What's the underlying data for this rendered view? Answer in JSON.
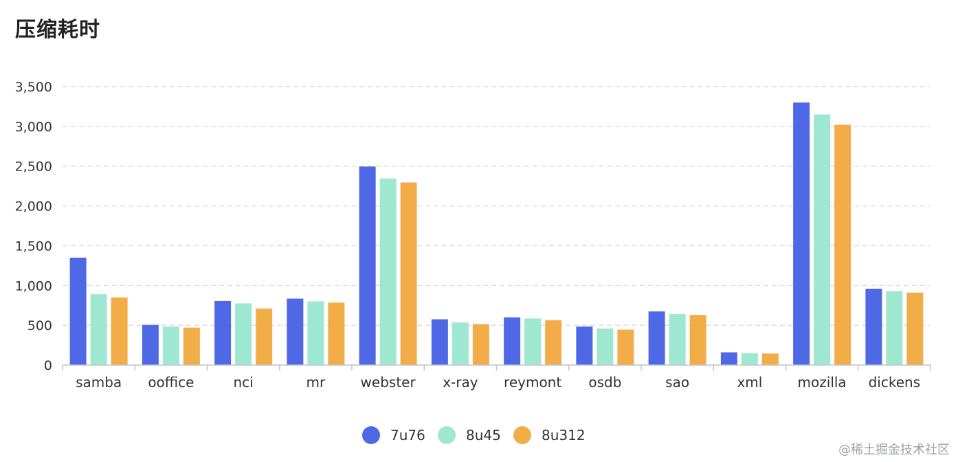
{
  "title": "压缩耗时",
  "watermark": "@稀土掘金技术社区",
  "colors": {
    "grid": "#dcdcdc",
    "axis": "#c0c4cc",
    "text": "#333333",
    "legend_text": "#333333"
  },
  "chart_data": {
    "type": "bar",
    "title": "压缩耗时",
    "categories": [
      "samba",
      "ooffice",
      "nci",
      "mr",
      "webster",
      "x-ray",
      "reymont",
      "osdb",
      "sao",
      "xml",
      "mozilla",
      "dickens"
    ],
    "series": [
      {
        "name": "7u76",
        "color": "#4f69e6",
        "values": [
          1350,
          505,
          805,
          835,
          2495,
          575,
          600,
          485,
          675,
          160,
          3300,
          960
        ]
      },
      {
        "name": "8u45",
        "color": "#9ee8d2",
        "values": [
          890,
          485,
          775,
          800,
          2345,
          535,
          585,
          460,
          640,
          150,
          3150,
          930
        ]
      },
      {
        "name": "8u312",
        "color": "#f2ad48",
        "values": [
          850,
          470,
          710,
          785,
          2295,
          515,
          565,
          445,
          630,
          145,
          3020,
          910
        ]
      }
    ],
    "y_ticks": [
      "0",
      "500",
      "1,000",
      "1,500",
      "2,000",
      "2,500",
      "3,000",
      "3,500"
    ],
    "y_tick_values": [
      0,
      500,
      1000,
      1500,
      2000,
      2500,
      3000,
      3500
    ],
    "ylim": [
      0,
      3500
    ],
    "grid": true,
    "legend_position": "bottom-center"
  }
}
